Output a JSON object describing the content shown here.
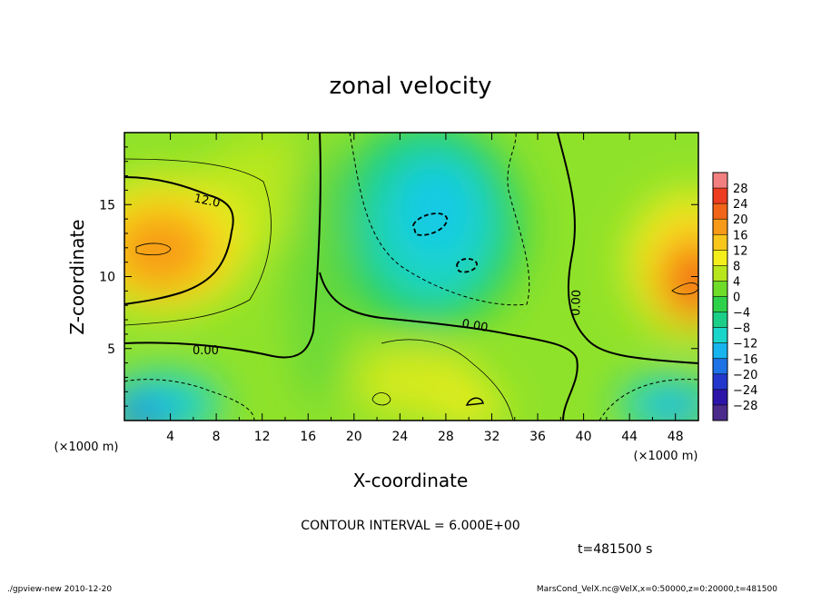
{
  "chart_data": {
    "type": "heatmap",
    "title": "zonal velocity",
    "xlabel": "X-coordinate",
    "ylabel": "Z-coordinate",
    "x_unit": "(×1000 m)",
    "y_unit": "(×1000 m)",
    "xlim": [
      0,
      50
    ],
    "ylim": [
      0,
      20
    ],
    "x_ticks": [
      "4",
      "8",
      "12",
      "16",
      "20",
      "24",
      "28",
      "32",
      "36",
      "40",
      "44",
      "48"
    ],
    "y_ticks": [
      "5",
      "10",
      "15"
    ],
    "colorbar": {
      "levels": [
        "28",
        "24",
        "20",
        "16",
        "12",
        "8",
        "4",
        "0",
        "−4",
        "−8",
        "−12",
        "−16",
        "−20",
        "−24",
        "−28"
      ],
      "colors": [
        "#f28080",
        "#ee3c20",
        "#f26518",
        "#f79a18",
        "#f9c71c",
        "#f4ee1c",
        "#b7e61c",
        "#6edc28",
        "#2ed24a",
        "#1ccf88",
        "#1ad5ca",
        "#17b4ee",
        "#1d73e6",
        "#2437cd",
        "#2c14a8",
        "#4a2a8a"
      ]
    },
    "contour_labels": [
      "12.0",
      "0.00",
      "0.00",
      "0.00"
    ],
    "contour_interval": "CONTOUR INTERVAL = 6.000E+00",
    "time": "t=481500 s",
    "field_samples": [
      {
        "x": 4,
        "z": 12,
        "u": 15
      },
      {
        "x": 48,
        "z": 9.5,
        "u": 19
      },
      {
        "x": 27,
        "z": 15,
        "u": -11
      },
      {
        "x": 30,
        "z": 10.5,
        "u": -9
      },
      {
        "x": 3,
        "z": 1.5,
        "u": -13
      },
      {
        "x": 46,
        "z": 2,
        "u": -12
      },
      {
        "x": 30,
        "z": 1.5,
        "u": 8
      }
    ],
    "grid": false
  },
  "footer": {
    "left": "./gpview-new   2010-12-20",
    "right": "MarsCond_VelX.nc@VelX,x=0:50000,z=0:20000,t=481500"
  }
}
